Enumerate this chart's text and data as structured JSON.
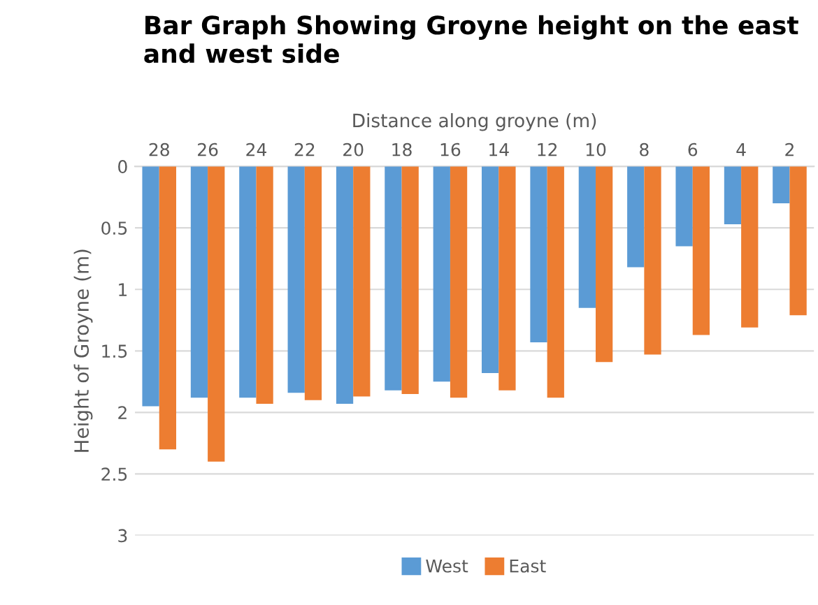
{
  "chart_data": {
    "type": "bar",
    "title": "Bar Graph Showing Groyne height on the east and west side",
    "xlabel": "Distance along groyne (m)",
    "ylabel": "Height of Groyne (m)",
    "categories": [
      "28",
      "26",
      "24",
      "22",
      "20",
      "18",
      "16",
      "14",
      "12",
      "10",
      "8",
      "6",
      "4",
      "2"
    ],
    "series": [
      {
        "name": "West",
        "color": "#5b9bd5",
        "values": [
          1.95,
          1.88,
          1.88,
          1.84,
          1.93,
          1.82,
          1.75,
          1.68,
          1.43,
          1.15,
          0.82,
          0.65,
          0.47,
          0.3
        ]
      },
      {
        "name": "East",
        "color": "#ed7d31",
        "values": [
          2.3,
          2.4,
          1.93,
          1.9,
          1.87,
          1.85,
          1.88,
          1.82,
          1.88,
          1.59,
          1.53,
          1.37,
          1.31,
          1.21
        ]
      }
    ],
    "ylim": [
      3,
      0
    ],
    "yticks": [
      0,
      0.5,
      1,
      1.5,
      2,
      2.5,
      3
    ],
    "grid": "y",
    "legend": "bottom"
  }
}
